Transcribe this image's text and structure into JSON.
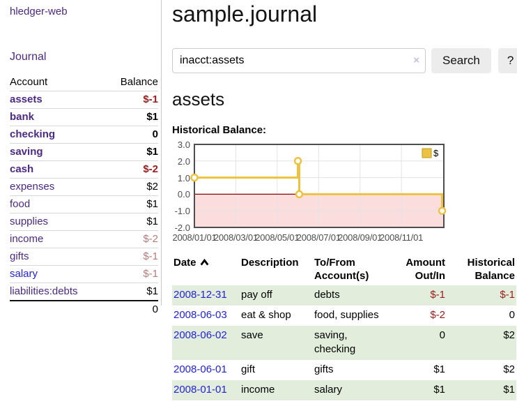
{
  "colors": {
    "link_purple": "#4a2a84",
    "link_blue": "#2222dd",
    "negative_red": "#9b1c1c",
    "negative_muted": "#b87a7a",
    "row_green": "#e2eedb",
    "chart_line": "#edc240",
    "chart_negative_region": "#fbdddd",
    "chart_zero_line": "#8b0000"
  },
  "sidebar": {
    "app_title": "hledger-web",
    "nav": {
      "journal": "Journal"
    },
    "accounts_table": {
      "headers": [
        "Account",
        "Balance"
      ],
      "rows": [
        {
          "name": "assets",
          "balance": "$-1",
          "indent": 1,
          "bold": true,
          "name_color": "purple",
          "balance_color": "negative"
        },
        {
          "name": "bank",
          "balance": "$1",
          "indent": 2,
          "bold": true,
          "name_color": "purple",
          "balance_color": "normal"
        },
        {
          "name": "checking",
          "balance": "0",
          "indent": 3,
          "bold": true,
          "name_color": "purple",
          "balance_color": "normal"
        },
        {
          "name": "saving",
          "balance": "$1",
          "indent": 3,
          "bold": true,
          "name_color": "purple",
          "balance_color": "normal"
        },
        {
          "name": "cash",
          "balance": "$-2",
          "indent": 2,
          "bold": true,
          "name_color": "purple",
          "balance_color": "negative"
        },
        {
          "name": "expenses",
          "balance": "$2",
          "indent": 1,
          "bold": false,
          "name_color": "purple",
          "balance_color": "normal"
        },
        {
          "name": "food",
          "balance": "$1",
          "indent": 2,
          "bold": false,
          "name_color": "purple",
          "balance_color": "normal"
        },
        {
          "name": "supplies",
          "balance": "$1",
          "indent": 2,
          "bold": false,
          "name_color": "purple",
          "balance_color": "normal"
        },
        {
          "name": "income",
          "balance": "$-2",
          "indent": 1,
          "bold": false,
          "name_color": "purple",
          "balance_color": "negative-muted"
        },
        {
          "name": "gifts",
          "balance": "$-1",
          "indent": 2,
          "bold": false,
          "name_color": "purple",
          "balance_color": "negative-muted"
        },
        {
          "name": "salary",
          "balance": "$-1",
          "indent": 2,
          "bold": false,
          "name_color": "blue",
          "balance_color": "negative-muted"
        },
        {
          "name": "liabilities:debts",
          "balance": "$1",
          "indent": 1,
          "bold": false,
          "name_color": "purple",
          "balance_color": "normal"
        }
      ],
      "total": "0"
    }
  },
  "main": {
    "title": "sample.journal",
    "search": {
      "value": "inacct:assets",
      "clear_icon": "×",
      "search_button": "Search",
      "help_button": "?"
    },
    "account_heading": "assets",
    "chart_label": "Historical Balance:",
    "register_table": {
      "headers": [
        {
          "label": "Date",
          "sortable": true,
          "sort": "ascending"
        },
        {
          "label": "Description"
        },
        {
          "label": "To/From Account(s)"
        },
        {
          "label": "Amount Out/In",
          "align": "right"
        },
        {
          "label": "Historical Balance",
          "align": "right"
        }
      ],
      "rows": [
        {
          "date": "2008-12-31",
          "description": "pay off",
          "accounts": "debts",
          "amount": "$-1",
          "amount_negative": true,
          "balance": "$-1",
          "balance_negative": true
        },
        {
          "date": "2008-06-03",
          "description": "eat & shop",
          "accounts": "food, supplies",
          "amount": "$-2",
          "amount_negative": true,
          "balance": "0",
          "balance_negative": false
        },
        {
          "date": "2008-06-02",
          "description": "save",
          "accounts": "saving, checking",
          "amount": "0",
          "amount_negative": false,
          "balance": "$2",
          "balance_negative": false
        },
        {
          "date": "2008-06-01",
          "description": "gift",
          "accounts": "gifts",
          "amount": "$1",
          "amount_negative": false,
          "balance": "$2",
          "balance_negative": false
        },
        {
          "date": "2008-01-01",
          "description": "income",
          "accounts": "salary",
          "amount": "$1",
          "amount_negative": false,
          "balance": "$1",
          "balance_negative": false
        }
      ]
    }
  },
  "chart_data": {
    "type": "line",
    "step": true,
    "title": "Historical Balance:",
    "series": [
      {
        "name": "$",
        "color": "#edc240",
        "points": [
          [
            "2008-01-01",
            1
          ],
          [
            "2008-06-01",
            2
          ],
          [
            "2008-06-03",
            0
          ],
          [
            "2008-12-31",
            -1
          ]
        ]
      }
    ],
    "x_ticks": [
      "2008/01/01",
      "2008/03/01",
      "2008/05/01",
      "2008/07/01",
      "2008/09/01",
      "2008/11/01"
    ],
    "y_ticks": [
      3,
      2,
      1,
      0,
      -1,
      -2
    ],
    "ylim": [
      -2,
      3
    ],
    "grid": true,
    "legend_position": "top-right",
    "negative_region_color": "#fbdddd",
    "zero_line_color": "#8b0000",
    "grid_color": "#e3e3e3",
    "border_color": "#4d4d4d",
    "axis_label_color": "#4d4d4d"
  }
}
